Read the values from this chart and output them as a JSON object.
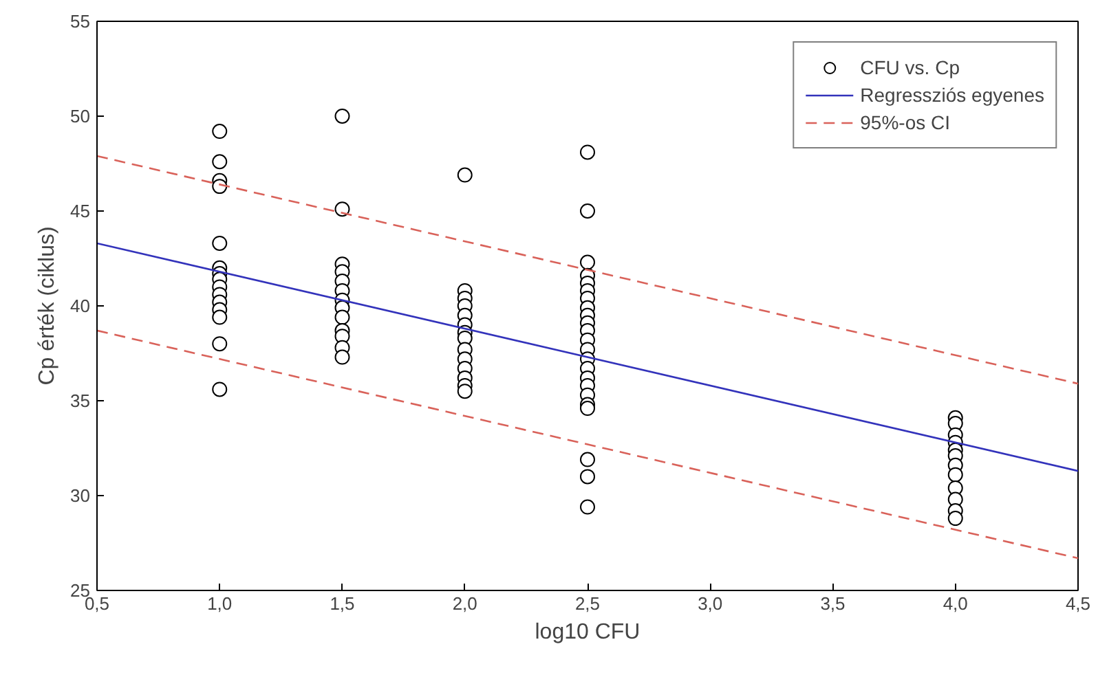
{
  "chart_data": {
    "type": "scatter",
    "xlabel": "log10 CFU",
    "ylabel": "Cp érték (ciklus)",
    "xlim": [
      0.5,
      4.5
    ],
    "ylim": [
      25,
      55
    ],
    "xticks": [
      {
        "value": 0.5,
        "label": "0,5"
      },
      {
        "value": 1.0,
        "label": "1,0"
      },
      {
        "value": 1.5,
        "label": "1,5"
      },
      {
        "value": 2.0,
        "label": "2,0"
      },
      {
        "value": 2.5,
        "label": "2,5"
      },
      {
        "value": 3.0,
        "label": "3,0"
      },
      {
        "value": 3.5,
        "label": "3,5"
      },
      {
        "value": 4.0,
        "label": "4,0"
      },
      {
        "value": 4.5,
        "label": "4,5"
      }
    ],
    "yticks": [
      25,
      30,
      35,
      40,
      45,
      50,
      55
    ],
    "grid": false,
    "legend": "top right",
    "marker": "circle",
    "series": [
      {
        "name": "CFU vs. Cp",
        "color": "#000000",
        "x": [
          1,
          1,
          1,
          1,
          1,
          1,
          1,
          1,
          1,
          1,
          1,
          1,
          1,
          1,
          1,
          1.5,
          1.5,
          1.5,
          1.5,
          1.5,
          1.5,
          1.5,
          1.5,
          1.5,
          1.5,
          1.5,
          1.5,
          1.5,
          2,
          2,
          2,
          2,
          2,
          2,
          2,
          2,
          2,
          2,
          2,
          2,
          2,
          2,
          2.5,
          2.5,
          2.5,
          2.5,
          2.5,
          2.5,
          2.5,
          2.5,
          2.5,
          2.5,
          2.5,
          2.5,
          2.5,
          2.5,
          2.5,
          2.5,
          2.5,
          2.5,
          2.5,
          2.5,
          2.5,
          2.5,
          2.5,
          4,
          4,
          4,
          4,
          4,
          4,
          4,
          4,
          4,
          4,
          4,
          4
        ],
        "values": [
          49.2,
          47.6,
          46.6,
          46.3,
          43.3,
          42.0,
          41.7,
          41.4,
          41.0,
          40.6,
          40.2,
          39.8,
          39.4,
          38.0,
          35.6,
          50.0,
          45.1,
          42.2,
          41.8,
          41.3,
          40.8,
          40.3,
          39.9,
          39.4,
          38.7,
          38.4,
          37.8,
          37.3,
          46.9,
          40.8,
          40.4,
          40.0,
          39.5,
          39.0,
          38.6,
          38.3,
          37.7,
          37.2,
          36.7,
          36.2,
          35.8,
          35.5,
          48.1,
          45.0,
          42.3,
          41.6,
          41.2,
          40.8,
          40.4,
          39.9,
          39.5,
          39.1,
          38.7,
          38.2,
          37.7,
          37.2,
          36.7,
          36.2,
          35.8,
          35.3,
          34.8,
          34.6,
          31.9,
          31.0,
          29.4,
          34.1,
          33.8,
          33.2,
          32.8,
          32.4,
          32.1,
          31.6,
          31.1,
          30.4,
          29.8,
          29.2,
          28.8
        ]
      },
      {
        "name": "Regressziós egyenes",
        "type": "line",
        "marker": "none",
        "line_style": "solid",
        "color": "#3333bb",
        "x": [
          0.5,
          4.5
        ],
        "values": [
          43.3,
          31.3
        ]
      },
      {
        "name": "95%-os CI",
        "type": "line",
        "marker": "none",
        "line_style": "dashed",
        "color": "#d9625a",
        "x": [
          0.5,
          4.5
        ],
        "values": [
          47.9,
          35.9
        ]
      },
      {
        "type": "line",
        "marker": "none",
        "line_style": "dashed",
        "color": "#d9625a",
        "x": [
          0.5,
          4.5
        ],
        "values": [
          38.7,
          26.7
        ]
      }
    ]
  }
}
